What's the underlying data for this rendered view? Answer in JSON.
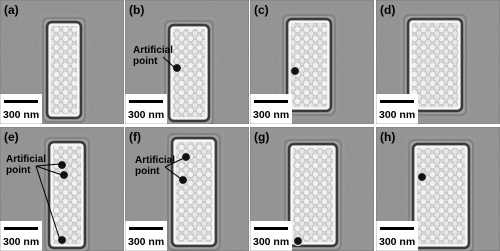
{
  "panels": [
    {
      "label": "(a)",
      "scale_bar": "300 nm"
    },
    {
      "label": "(b)",
      "scale_bar": "300 nm",
      "annotation": {
        "lines": [
          "Artificial",
          "point"
        ]
      }
    },
    {
      "label": "(c)",
      "scale_bar": "300 nm"
    },
    {
      "label": "(d)",
      "scale_bar": "300 nm"
    },
    {
      "label": "(e)",
      "scale_bar": "300 nm",
      "annotation": {
        "lines": [
          "Artificial",
          "point"
        ]
      }
    },
    {
      "label": "(f)",
      "scale_bar": "300 nm",
      "annotation": {
        "lines": [
          "Artificial",
          "point"
        ]
      }
    },
    {
      "label": "(g)",
      "scale_bar": "300 nm"
    },
    {
      "label": "(h)",
      "scale_bar": "300 nm"
    }
  ]
}
